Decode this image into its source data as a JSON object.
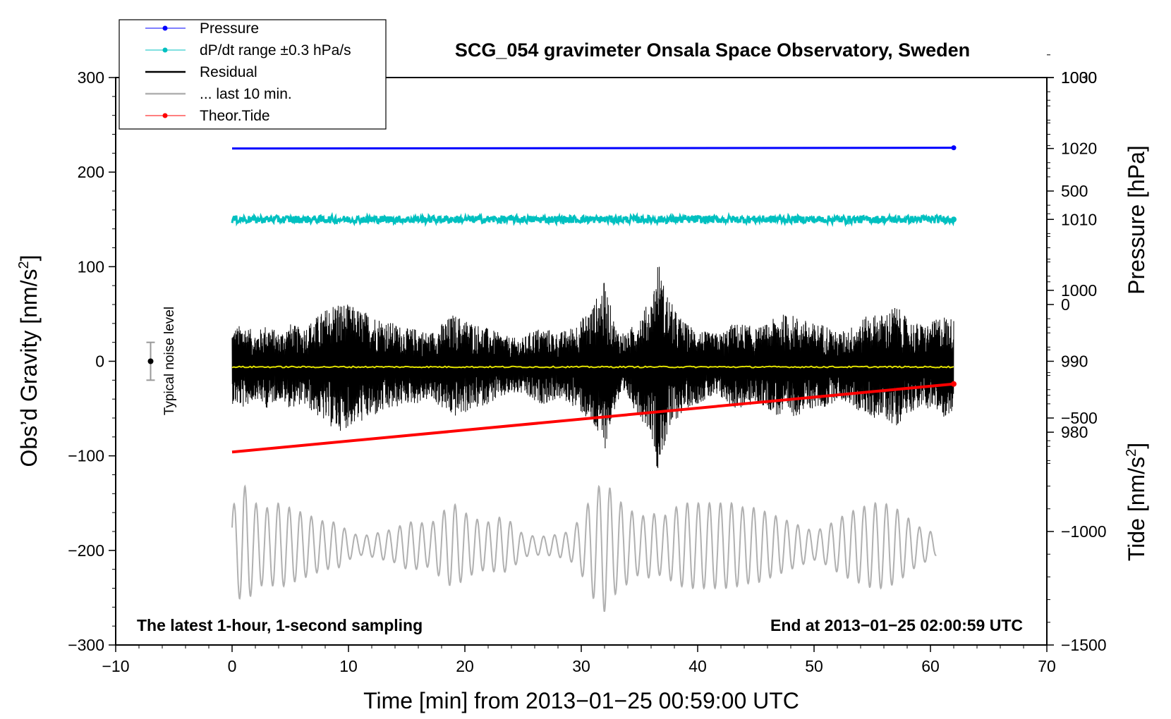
{
  "chart_data": {
    "type": "line",
    "title": "SCG_054 gravimeter Onsala Space Observatory, Sweden",
    "xlabel": "Time [min] from 2013−01−25 00:59:00 UTC",
    "ylabel_left": "Obs’d Gravity [nm/s",
    "ylabel_left_sup": "2",
    "ylabel_left_end": "]",
    "ylabel_right_upper": "Pressure [hPa]",
    "ylabel_right_lower": "Tide [nm/s",
    "ylabel_right_lower_sup": "2",
    "ylabel_right_lower_end": "]",
    "xlim": [
      -10,
      70
    ],
    "ylim_left": [
      -300,
      300
    ],
    "ylim_pressure": [
      950,
      1030
    ],
    "ylim_tide": [
      -1500,
      1000
    ],
    "x_ticks": [
      -10,
      0,
      10,
      20,
      30,
      40,
      50,
      60,
      70
    ],
    "x_tick_labels": [
      "−10",
      "0",
      "10",
      "20",
      "30",
      "40",
      "50",
      "60",
      "70"
    ],
    "y_left_ticks": [
      300,
      200,
      100,
      0,
      -100,
      -200,
      -300
    ],
    "y_left_tick_labels": [
      "300",
      "200",
      "100",
      "0",
      "−100",
      "−200",
      "−300"
    ],
    "pressure_ticks": [
      1030,
      1020,
      1010,
      1000,
      990,
      980
    ],
    "pressure_tick_labels": [
      "1030",
      "1020",
      "1010",
      "1000",
      "990",
      "980"
    ],
    "tide_ticks": [
      1000,
      500,
      0,
      -500,
      -1000,
      -1500
    ],
    "tide_tick_labels": [
      "1000",
      "500",
      "0",
      "−500",
      "−1000",
      "−1500"
    ],
    "legend": [
      {
        "label": "Pressure",
        "color": "#0000ff",
        "marker": true
      },
      {
        "label": "dP/dt range ±0.3 hPa/s",
        "color": "#00c0c0",
        "marker": true
      },
      {
        "label": "Residual",
        "color": "#000000",
        "marker": false
      },
      {
        "label": "... last 10 min.",
        "color": "#b0b0b0",
        "marker": false
      },
      {
        "label": "Theor.Tide",
        "color": "#ff0000",
        "marker": true
      }
    ],
    "series": [
      {
        "name": "Pressure",
        "axis": "pressure",
        "color": "#0000ff",
        "x_range": [
          0,
          62
        ],
        "values_start": 1020.0,
        "values_end": 1020.1
      },
      {
        "name": "dP/dt range ±0.3 hPa/s",
        "axis": "left",
        "color": "#00c0c0",
        "x_range": [
          0,
          62
        ],
        "center": 150,
        "spread": 4
      },
      {
        "name": "Residual",
        "axis": "left",
        "color": "#000000",
        "x_range": [
          0,
          62
        ],
        "center": -5,
        "envelope": [
          [
            0,
            40
          ],
          [
            1,
            45
          ],
          [
            2,
            35
          ],
          [
            3,
            45
          ],
          [
            4,
            35
          ],
          [
            5,
            45
          ],
          [
            6,
            40
          ],
          [
            7,
            50
          ],
          [
            8,
            60
          ],
          [
            9,
            70
          ],
          [
            10,
            65
          ],
          [
            11,
            60
          ],
          [
            12,
            55
          ],
          [
            13,
            50
          ],
          [
            14,
            45
          ],
          [
            15,
            40
          ],
          [
            16,
            40
          ],
          [
            17,
            35
          ],
          [
            18,
            45
          ],
          [
            19,
            55
          ],
          [
            20,
            50
          ],
          [
            21,
            45
          ],
          [
            22,
            40
          ],
          [
            23,
            35
          ],
          [
            24,
            30
          ],
          [
            25,
            30
          ],
          [
            26,
            40
          ],
          [
            27,
            40
          ],
          [
            28,
            35
          ],
          [
            29,
            40
          ],
          [
            30,
            50
          ],
          [
            31,
            65
          ],
          [
            32,
            90
          ],
          [
            33,
            40
          ],
          [
            34,
            35
          ],
          [
            35,
            55
          ],
          [
            36,
            70
          ],
          [
            36.6,
            115
          ],
          [
            37,
            90
          ],
          [
            38,
            60
          ],
          [
            39,
            45
          ],
          [
            40,
            40
          ],
          [
            41,
            35
          ],
          [
            42,
            35
          ],
          [
            43,
            45
          ],
          [
            44,
            45
          ],
          [
            45,
            40
          ],
          [
            46,
            45
          ],
          [
            47,
            55
          ],
          [
            48,
            55
          ],
          [
            49,
            50
          ],
          [
            50,
            45
          ],
          [
            51,
            45
          ],
          [
            52,
            35
          ],
          [
            53,
            40
          ],
          [
            54,
            50
          ],
          [
            55,
            55
          ],
          [
            56,
            55
          ],
          [
            57,
            65
          ],
          [
            58,
            50
          ],
          [
            59,
            45
          ],
          [
            60,
            45
          ],
          [
            61,
            55
          ],
          [
            62,
            50
          ]
        ]
      },
      {
        "name": "Residual mean",
        "axis": "left",
        "color": "#e0e000",
        "x_range": [
          0,
          62
        ],
        "value": -6
      },
      {
        "name": "... last 10 min.",
        "axis": "left",
        "color": "#b0b0b0",
        "x_range": [
          0,
          60.5
        ],
        "center": -195,
        "envelope": [
          [
            0,
            40
          ],
          [
            1,
            65
          ],
          [
            2,
            45
          ],
          [
            3,
            40
          ],
          [
            4,
            45
          ],
          [
            5,
            40
          ],
          [
            6,
            35
          ],
          [
            7,
            30
          ],
          [
            8,
            25
          ],
          [
            9,
            25
          ],
          [
            10,
            15
          ],
          [
            11,
            10
          ],
          [
            12,
            12
          ],
          [
            13,
            15
          ],
          [
            14,
            18
          ],
          [
            15,
            25
          ],
          [
            16,
            25
          ],
          [
            17,
            22
          ],
          [
            18,
            35
          ],
          [
            19,
            45
          ],
          [
            20,
            35
          ],
          [
            21,
            28
          ],
          [
            22,
            25
          ],
          [
            23,
            30
          ],
          [
            24,
            25
          ],
          [
            25,
            12
          ],
          [
            26,
            10
          ],
          [
            27,
            10
          ],
          [
            28,
            12
          ],
          [
            29,
            15
          ],
          [
            30,
            30
          ],
          [
            31,
            55
          ],
          [
            32,
            70
          ],
          [
            33,
            50
          ],
          [
            34,
            40
          ],
          [
            35,
            30
          ],
          [
            36,
            35
          ],
          [
            37,
            30
          ],
          [
            38,
            40
          ],
          [
            39,
            45
          ],
          [
            40,
            45
          ],
          [
            41,
            45
          ],
          [
            42,
            45
          ],
          [
            43,
            45
          ],
          [
            44,
            40
          ],
          [
            45,
            40
          ],
          [
            46,
            35
          ],
          [
            47,
            30
          ],
          [
            48,
            25
          ],
          [
            49,
            20
          ],
          [
            50,
            15
          ],
          [
            51,
            20
          ],
          [
            52,
            28
          ],
          [
            53,
            35
          ],
          [
            54,
            40
          ],
          [
            55,
            45
          ],
          [
            56,
            45
          ],
          [
            57,
            40
          ],
          [
            58,
            30
          ],
          [
            59,
            20
          ],
          [
            60,
            15
          ],
          [
            60.5,
            10
          ]
        ]
      },
      {
        "name": "Theor.Tide",
        "axis": "tide",
        "color": "#ff0000",
        "x_range": [
          0,
          62
        ],
        "values_start": -650,
        "values_end": -350
      }
    ],
    "noise_indicator": {
      "label": "Typical noise level",
      "x": -7,
      "center": 0,
      "half_range": 20
    }
  },
  "annotations": {
    "bottom_left": "The latest 1-hour, 1-second sampling",
    "bottom_right": "End at 2013−01−25 02:00:59 UTC"
  }
}
